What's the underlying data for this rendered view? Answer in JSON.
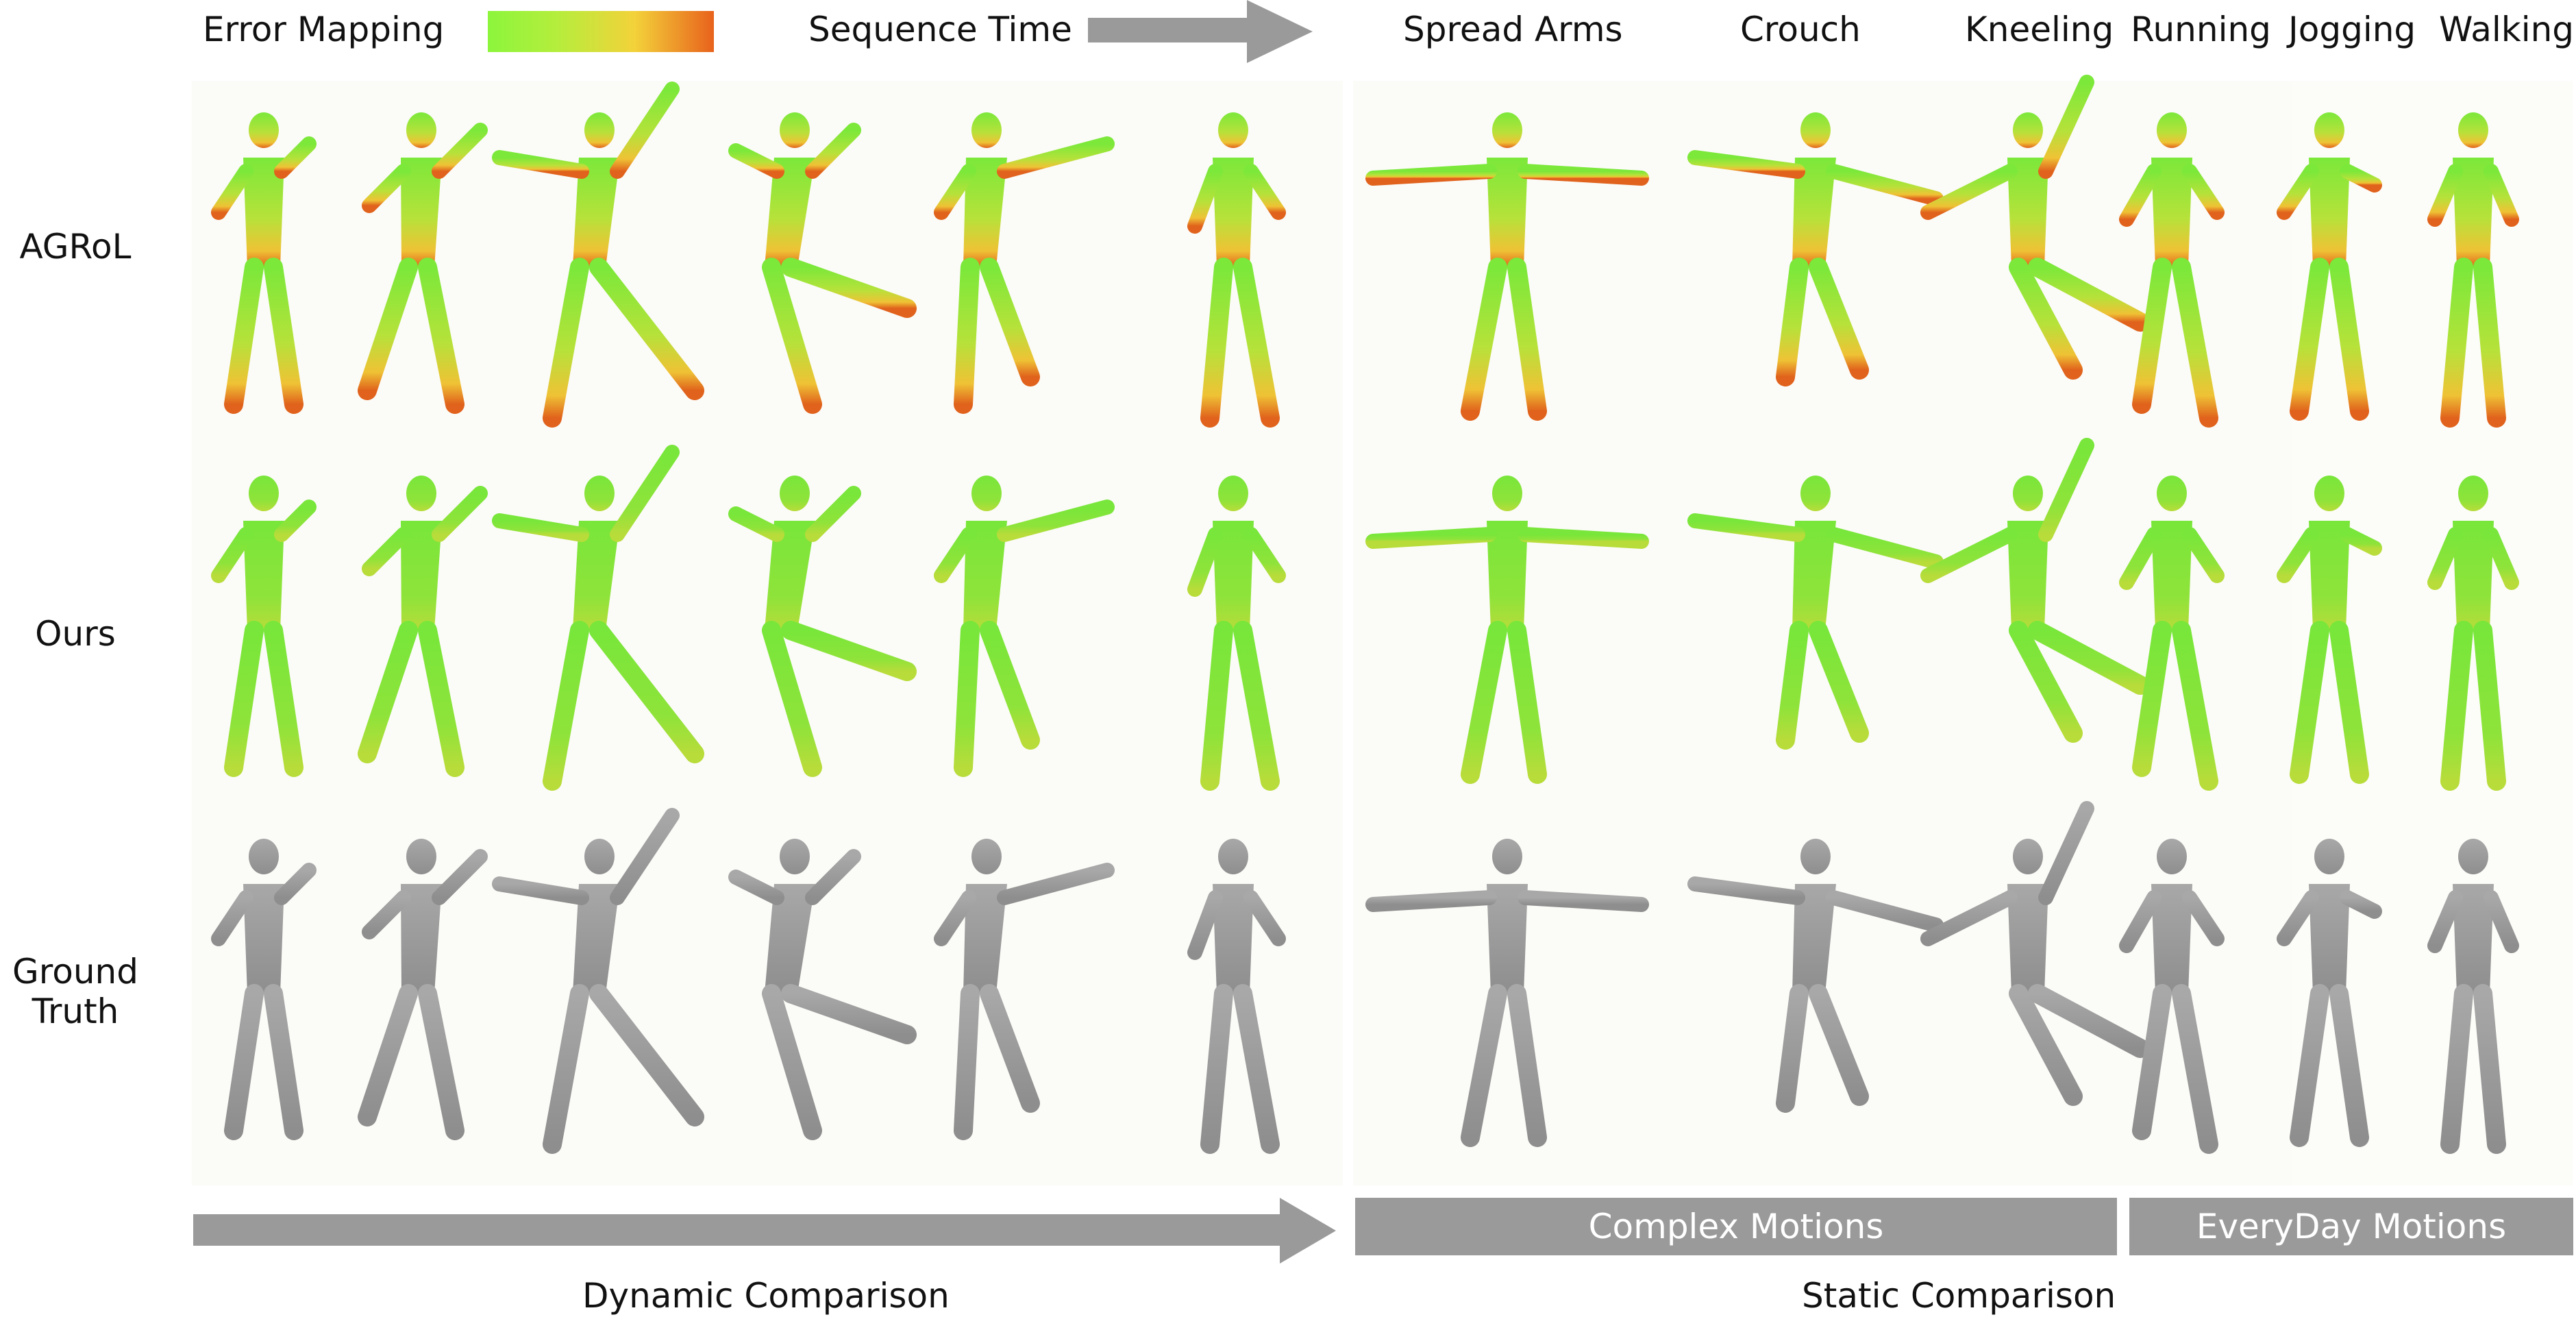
{
  "legend": {
    "error_mapping": "Error Mapping",
    "sequence_time": "Sequence Time",
    "gradient_colors": [
      "#8cf53c",
      "#f3d23a",
      "#e8621c"
    ]
  },
  "columns": {
    "spread_arms": "Spread Arms",
    "crouch": "Crouch",
    "kneeling": "Kneeling",
    "running": "Running",
    "jogging": "Jogging",
    "walking": "Walking"
  },
  "rows": {
    "agrol": "AGRoL",
    "ours": "Ours",
    "ground_truth_line1": "Ground",
    "ground_truth_line2": "Truth"
  },
  "bars": {
    "complex": "Complex Motions",
    "everyday": "EveryDay Motions"
  },
  "footer": {
    "dynamic": "Dynamic Comparison",
    "static": "Static Comparison"
  },
  "colors": {
    "low_error": "#8cf53c",
    "mid_error": "#f3d23a",
    "high_error": "#e8621c",
    "ground_truth": "#9b9b9b",
    "bar": "#9a9a9a"
  }
}
